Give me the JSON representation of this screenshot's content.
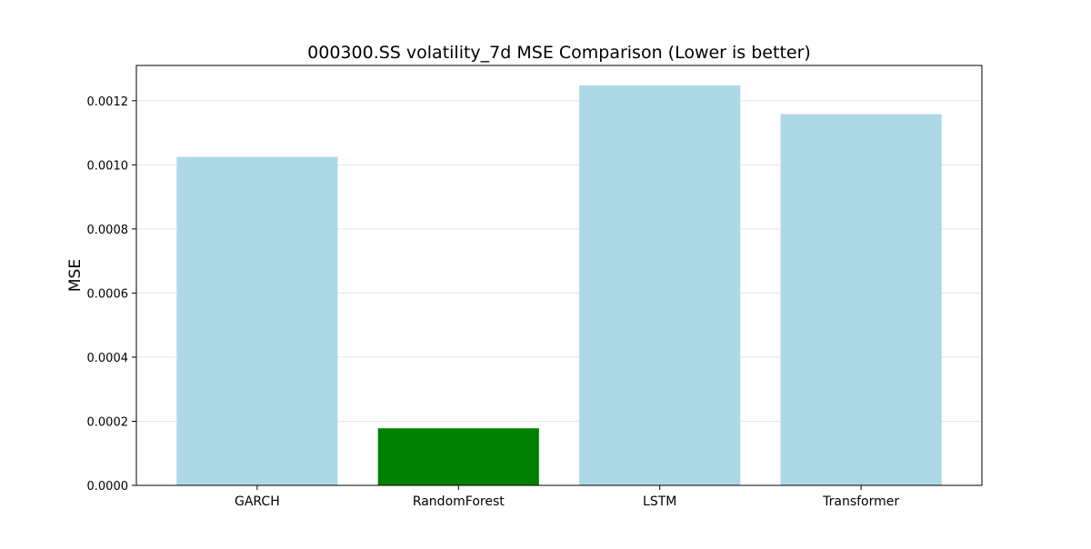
{
  "chart_data": {
    "type": "bar",
    "title": "000300.SS volatility_7d MSE Comparison (Lower is better)",
    "xlabel": "",
    "ylabel": "MSE",
    "categories": [
      "GARCH",
      "RandomForest",
      "LSTM",
      "Transformer"
    ],
    "values": [
      0.001025,
      0.000178,
      0.001248,
      0.001158
    ],
    "ylim": [
      0,
      0.00131
    ],
    "yticks": [
      0,
      0.0002,
      0.0004,
      0.0006,
      0.0008,
      0.001,
      0.0012
    ],
    "ytick_labels": [
      "0.0000",
      "0.0002",
      "0.0004",
      "0.0006",
      "0.0008",
      "0.0010",
      "0.0012"
    ],
    "grid": true,
    "legend": "none",
    "colors": {
      "default_bar": "#add8e6",
      "best_bar": "#008000",
      "grid": "#e6e6e6",
      "axis": "#000000"
    },
    "highlight_index": 1
  }
}
